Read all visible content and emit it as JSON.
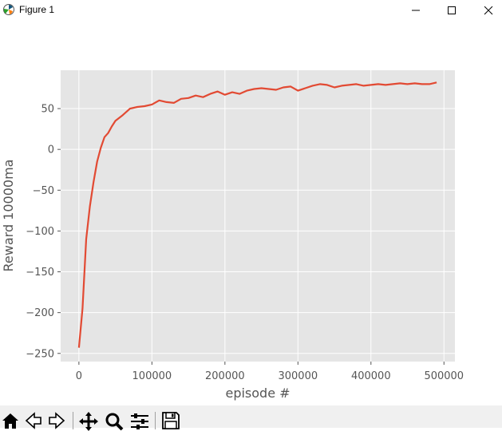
{
  "window": {
    "title": "Figure 1",
    "controls": [
      "minimize",
      "maximize",
      "close"
    ]
  },
  "toolbar": {
    "buttons": [
      {
        "name": "home",
        "icon": "home-icon"
      },
      {
        "name": "back",
        "icon": "back-arrow-icon"
      },
      {
        "name": "forward",
        "icon": "forward-arrow-icon"
      },
      {
        "name": "pan",
        "icon": "move-icon"
      },
      {
        "name": "zoom",
        "icon": "zoom-icon"
      },
      {
        "name": "configure-subplots",
        "icon": "sliders-icon"
      },
      {
        "name": "save",
        "icon": "save-icon"
      }
    ]
  },
  "colors": {
    "line": "#e24a33",
    "plot_bg": "#e5e5e5",
    "grid": "#ffffff",
    "tick_text": "#555555",
    "label_text": "#555555"
  },
  "chart_data": {
    "type": "line",
    "title": "",
    "xlabel": "episode #",
    "ylabel": "Reward 10000ma",
    "xlim": [
      -25000,
      515000
    ],
    "ylim": [
      -260,
      97
    ],
    "xticks": [
      0,
      100000,
      200000,
      300000,
      400000,
      500000
    ],
    "xtick_labels": [
      "0",
      "100000",
      "200000",
      "300000",
      "400000",
      "500000"
    ],
    "yticks": [
      -250,
      -200,
      -150,
      -100,
      -50,
      0,
      50
    ],
    "ytick_labels": [
      "−250",
      "−200",
      "−150",
      "−100",
      "−50",
      "0",
      "50"
    ],
    "grid": true,
    "series": [
      {
        "x": [
          0,
          5000,
          10000,
          15000,
          20000,
          25000,
          30000,
          35000,
          40000,
          45000,
          50000,
          60000,
          70000,
          80000,
          90000,
          100000,
          110000,
          120000,
          130000,
          140000,
          150000,
          160000,
          170000,
          180000,
          190000,
          200000,
          210000,
          220000,
          230000,
          240000,
          250000,
          260000,
          270000,
          280000,
          290000,
          300000,
          310000,
          320000,
          330000,
          340000,
          350000,
          360000,
          370000,
          380000,
          390000,
          400000,
          410000,
          420000,
          430000,
          440000,
          450000,
          460000,
          470000,
          480000,
          490000
        ],
        "y": [
          -243,
          -195,
          -110,
          -70,
          -40,
          -15,
          2,
          15,
          20,
          28,
          35,
          42,
          50,
          52,
          53,
          55,
          60,
          58,
          57,
          62,
          63,
          66,
          64,
          68,
          71,
          67,
          70,
          68,
          72,
          74,
          75,
          74,
          73,
          76,
          77,
          72,
          75,
          78,
          80,
          79,
          76,
          78,
          79,
          80,
          78,
          79,
          80,
          79,
          80,
          81,
          80,
          81,
          80,
          80,
          82
        ]
      }
    ]
  }
}
